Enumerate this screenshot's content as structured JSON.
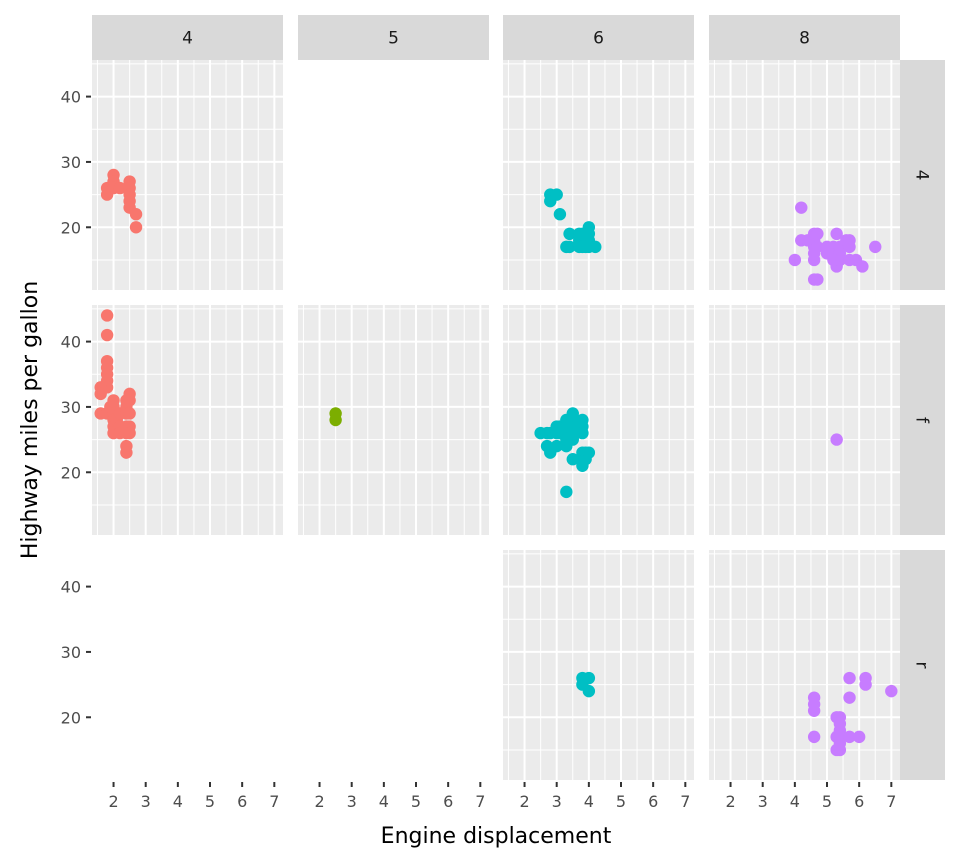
{
  "chart_data": {
    "type": "scatter",
    "title": "",
    "xlabel": "Engine displacement",
    "ylabel": "Highway miles per gallon",
    "xlim": [
      1.33,
      7.27
    ],
    "ylim": [
      10.4,
      45.6
    ],
    "x_ticks": [
      2,
      3,
      4,
      5,
      6,
      7
    ],
    "y_ticks": [
      20,
      30,
      40
    ],
    "x_tick_labels": [
      "2",
      "3",
      "4",
      "5",
      "6",
      "7"
    ],
    "y_tick_labels": [
      "20",
      "30",
      "40"
    ],
    "grid": true,
    "legend": "none",
    "facet_cols": {
      "variable": "cyl",
      "levels": [
        "4",
        "5",
        "6",
        "8"
      ]
    },
    "facet_rows": {
      "variable": "drv",
      "levels": [
        "4",
        "f",
        "r"
      ]
    },
    "colors": {
      "4": "#F8766D",
      "5": "#7CAE00",
      "6": "#00BFC4",
      "8": "#C77CFF"
    },
    "panel_background": "#EBEBEB",
    "strip_background": "#D9D9D9",
    "panels": [
      {
        "col": "4",
        "row": "4",
        "points": [
          [
            1.8,
            26
          ],
          [
            1.8,
            25
          ],
          [
            2.0,
            28
          ],
          [
            2.0,
            27
          ],
          [
            2.0,
            26
          ],
          [
            2.2,
            26
          ],
          [
            2.5,
            27
          ],
          [
            2.5,
            26
          ],
          [
            2.5,
            25
          ],
          [
            2.5,
            24
          ],
          [
            2.5,
            23
          ],
          [
            2.7,
            22
          ],
          [
            2.7,
            20
          ]
        ]
      },
      {
        "col": "5",
        "row": "4",
        "points": []
      },
      {
        "col": "6",
        "row": "4",
        "points": [
          [
            2.8,
            25
          ],
          [
            2.8,
            24
          ],
          [
            3.0,
            25
          ],
          [
            3.1,
            22
          ],
          [
            3.3,
            17
          ],
          [
            3.4,
            19
          ],
          [
            3.4,
            17
          ],
          [
            3.7,
            19
          ],
          [
            3.7,
            18
          ],
          [
            3.7,
            17
          ],
          [
            3.8,
            19
          ],
          [
            3.8,
            17
          ],
          [
            4.0,
            20
          ],
          [
            4.0,
            19
          ],
          [
            4.0,
            18
          ],
          [
            4.0,
            17
          ],
          [
            4.2,
            17
          ],
          [
            3.9,
            17
          ]
        ]
      },
      {
        "col": "8",
        "row": "4",
        "points": [
          [
            4.2,
            23
          ],
          [
            4.0,
            15
          ],
          [
            4.2,
            18
          ],
          [
            4.4,
            18
          ],
          [
            4.6,
            19
          ],
          [
            4.6,
            18
          ],
          [
            4.6,
            17
          ],
          [
            4.6,
            16
          ],
          [
            4.6,
            15
          ],
          [
            4.7,
            19
          ],
          [
            4.7,
            17
          ],
          [
            4.7,
            12
          ],
          [
            4.6,
            12
          ],
          [
            5.0,
            17
          ],
          [
            5.2,
            17
          ],
          [
            5.3,
            19
          ],
          [
            5.3,
            16
          ],
          [
            5.3,
            15
          ],
          [
            5.3,
            14
          ],
          [
            5.4,
            17
          ],
          [
            5.4,
            16
          ],
          [
            5.4,
            15
          ],
          [
            5.6,
            18
          ],
          [
            5.7,
            18
          ],
          [
            5.7,
            17
          ],
          [
            5.7,
            15
          ],
          [
            5.9,
            15
          ],
          [
            6.1,
            14
          ],
          [
            6.5,
            17
          ],
          [
            5.0,
            16
          ],
          [
            5.2,
            15
          ]
        ]
      },
      {
        "col": "4",
        "row": "f",
        "points": [
          [
            1.8,
            44
          ],
          [
            1.8,
            41
          ],
          [
            1.8,
            37
          ],
          [
            1.8,
            36
          ],
          [
            1.8,
            35
          ],
          [
            1.8,
            34
          ],
          [
            1.8,
            33
          ],
          [
            1.6,
            33
          ],
          [
            1.6,
            32
          ],
          [
            1.6,
            29
          ],
          [
            1.8,
            29
          ],
          [
            1.9,
            30
          ],
          [
            2.0,
            31
          ],
          [
            2.0,
            30
          ],
          [
            2.0,
            29
          ],
          [
            2.0,
            28
          ],
          [
            2.0,
            27
          ],
          [
            2.0,
            26
          ],
          [
            2.1,
            28
          ],
          [
            2.2,
            29
          ],
          [
            2.2,
            27
          ],
          [
            2.2,
            26
          ],
          [
            2.4,
            31
          ],
          [
            2.4,
            30
          ],
          [
            2.4,
            29
          ],
          [
            2.4,
            27
          ],
          [
            2.4,
            26
          ],
          [
            2.4,
            24
          ],
          [
            2.5,
            32
          ],
          [
            2.5,
            31
          ],
          [
            2.5,
            29
          ],
          [
            2.5,
            27
          ],
          [
            2.5,
            26
          ],
          [
            2.4,
            23
          ]
        ]
      },
      {
        "col": "5",
        "row": "f",
        "points": [
          [
            2.5,
            29
          ],
          [
            2.5,
            28
          ]
        ]
      },
      {
        "col": "6",
        "row": "f",
        "points": [
          [
            2.5,
            26
          ],
          [
            2.7,
            26
          ],
          [
            2.7,
            24
          ],
          [
            2.8,
            23
          ],
          [
            2.8,
            26
          ],
          [
            3.0,
            27
          ],
          [
            3.0,
            26
          ],
          [
            3.0,
            24
          ],
          [
            3.1,
            27
          ],
          [
            3.1,
            26
          ],
          [
            3.3,
            28
          ],
          [
            3.3,
            27
          ],
          [
            3.3,
            26
          ],
          [
            3.3,
            24
          ],
          [
            3.3,
            17
          ],
          [
            3.4,
            27
          ],
          [
            3.4,
            26
          ],
          [
            3.5,
            29
          ],
          [
            3.5,
            28
          ],
          [
            3.5,
            26
          ],
          [
            3.5,
            25
          ],
          [
            3.6,
            27
          ],
          [
            3.6,
            26
          ],
          [
            3.8,
            28
          ],
          [
            3.8,
            27
          ],
          [
            3.8,
            26
          ],
          [
            3.8,
            23
          ],
          [
            3.8,
            22
          ],
          [
            3.8,
            21
          ],
          [
            3.9,
            23
          ],
          [
            3.9,
            22
          ],
          [
            4.0,
            23
          ],
          [
            3.5,
            22
          ],
          [
            3.3,
            25
          ]
        ]
      },
      {
        "col": "8",
        "row": "f",
        "points": [
          [
            5.3,
            25
          ]
        ]
      },
      {
        "col": "4",
        "row": "r",
        "points": []
      },
      {
        "col": "5",
        "row": "r",
        "points": []
      },
      {
        "col": "6",
        "row": "r",
        "points": [
          [
            3.8,
            26
          ],
          [
            3.8,
            25
          ],
          [
            4.0,
            26
          ],
          [
            4.0,
            24
          ]
        ]
      },
      {
        "col": "8",
        "row": "r",
        "points": [
          [
            4.6,
            23
          ],
          [
            4.6,
            22
          ],
          [
            4.6,
            21
          ],
          [
            4.6,
            17
          ],
          [
            5.3,
            20
          ],
          [
            5.4,
            20
          ],
          [
            5.3,
            17
          ],
          [
            5.4,
            18
          ],
          [
            5.4,
            17
          ],
          [
            5.4,
            16
          ],
          [
            5.3,
            15
          ],
          [
            5.4,
            15
          ],
          [
            5.7,
            26
          ],
          [
            5.7,
            23
          ],
          [
            5.7,
            17
          ],
          [
            6.0,
            17
          ],
          [
            6.2,
            26
          ],
          [
            6.2,
            25
          ],
          [
            7.0,
            24
          ],
          [
            5.4,
            19
          ]
        ]
      }
    ]
  }
}
